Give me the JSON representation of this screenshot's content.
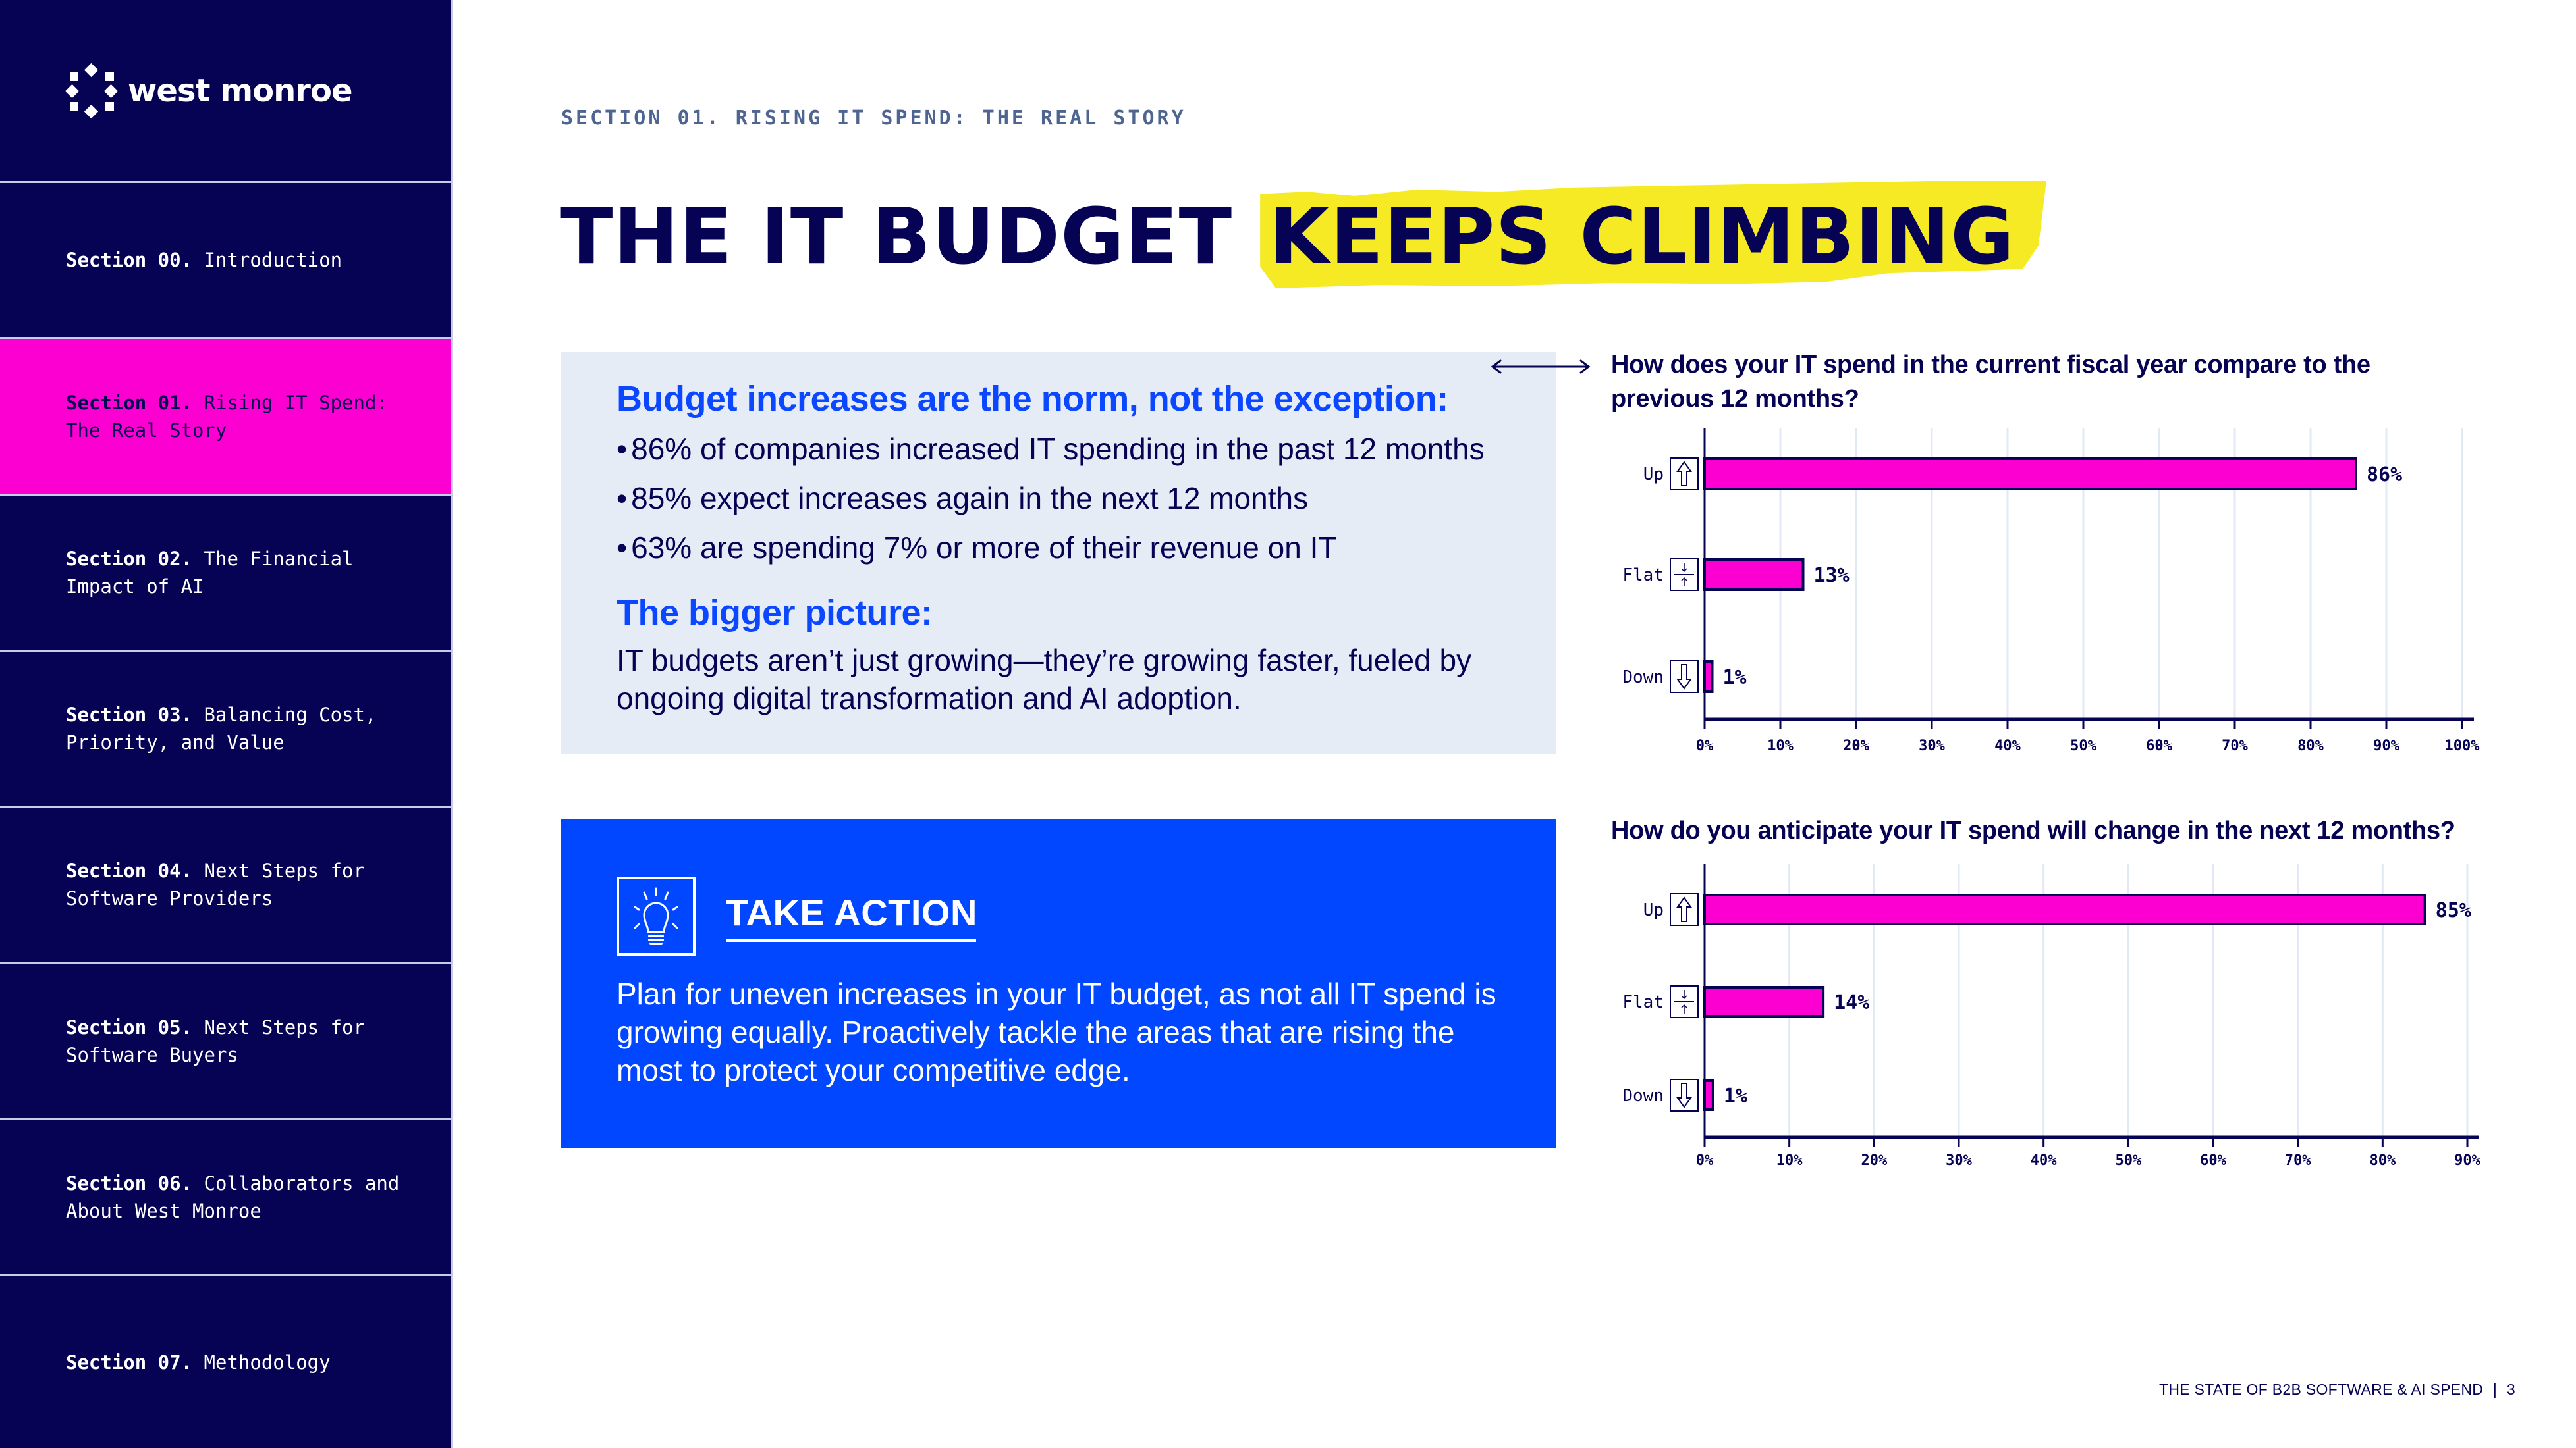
{
  "brand": {
    "name": "west monroe",
    "logo_icon": "diamond-ring-logo"
  },
  "sidebar": {
    "items": [
      {
        "num": "Section 00.",
        "label": "Introduction",
        "active": false
      },
      {
        "num": "Section 01.",
        "label": "Rising IT Spend: The Real Story",
        "active": true
      },
      {
        "num": "Section 02.",
        "label": "The Financial Impact of AI",
        "active": false
      },
      {
        "num": "Section 03.",
        "label": "Balancing Cost, Priority, and Value",
        "active": false
      },
      {
        "num": "Section 04.",
        "label": "Next Steps for Software Providers",
        "active": false
      },
      {
        "num": "Section 05.",
        "label": "Next Steps for Software Buyers",
        "active": false
      },
      {
        "num": "Section 06.",
        "label": "Collaborators and About West Monroe",
        "active": false
      },
      {
        "num": "Section 07.",
        "label": "Methodology",
        "active": false
      }
    ]
  },
  "header": {
    "eyebrow": "SECTION 01. RISING IT SPEND: THE REAL STORY",
    "title_plain": "THE IT BUDGET",
    "title_highlight": "KEEPS CLIMBING"
  },
  "info_box": {
    "heading": "Budget increases are the norm, not the exception:",
    "bullets": [
      "86% of companies increased IT spending in the past 12 months",
      "85% expect increases again in the next 12 months",
      "63% are spending 7% or more of their revenue on IT"
    ],
    "subheading": "The bigger picture:",
    "paragraph": "IT budgets aren’t just growing—they’re growing faster, fueled by ongoing digital transformation and AI adoption."
  },
  "action_box": {
    "icon": "lightbulb-icon",
    "title": "TAKE ACTION",
    "text": "Plan for uneven increases in your IT budget, as not all IT spend is growing equally. Proactively tackle the areas that are rising the most to protect your competitive edge."
  },
  "footer": {
    "publication": "THE STATE OF B2B SOFTWARE & AI SPEND",
    "separator": "|",
    "page": "3"
  },
  "colors": {
    "navy": "#060254",
    "magenta": "#fb00d0",
    "blue": "#0047ff",
    "highlight_yellow": "#f5ea24",
    "info_bg": "#e6ecf6",
    "grid": "#e3e9f4"
  },
  "chart_data": [
    {
      "type": "bar",
      "orientation": "horizontal",
      "title": "How does your IT spend in the current fiscal year compare to the previous 12 months?",
      "categories": [
        "Up",
        "Flat",
        "Down"
      ],
      "category_icons": [
        "arrow-up-icon",
        "flat-arrows-icon",
        "arrow-down-icon"
      ],
      "values": [
        86,
        13,
        1
      ],
      "value_labels": [
        "86%",
        "13%",
        "1%"
      ],
      "xlim": [
        0,
        100
      ],
      "xticks": [
        0,
        10,
        20,
        30,
        40,
        50,
        60,
        70,
        80,
        90,
        100
      ],
      "xtick_labels": [
        "0%",
        "10%",
        "20%",
        "30%",
        "40%",
        "50%",
        "60%",
        "70%",
        "80%",
        "90%",
        "100%"
      ],
      "grid": true,
      "legend": "none"
    },
    {
      "type": "bar",
      "orientation": "horizontal",
      "title": "How do you anticipate your IT spend will change in the next 12 months?",
      "categories": [
        "Up",
        "Flat",
        "Down"
      ],
      "category_icons": [
        "arrow-up-icon",
        "flat-arrows-icon",
        "arrow-down-icon"
      ],
      "values": [
        85,
        14,
        1
      ],
      "value_labels": [
        "85%",
        "14%",
        "1%"
      ],
      "xlim": [
        0,
        90
      ],
      "xticks": [
        0,
        10,
        20,
        30,
        40,
        50,
        60,
        70,
        80,
        90
      ],
      "xtick_labels": [
        "0%",
        "10%",
        "20%",
        "30%",
        "40%",
        "50%",
        "60%",
        "70%",
        "80%",
        "90%"
      ],
      "grid": true,
      "legend": "none"
    }
  ]
}
